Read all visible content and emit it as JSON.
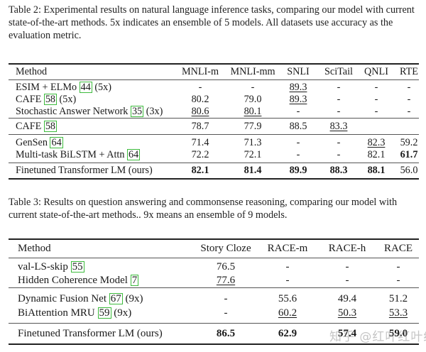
{
  "table2": {
    "caption": "Table 2: Experimental results on natural language inference tasks, comparing our model with current state-of-the-art methods. 5x indicates an ensemble of 5 models. All datasets use accuracy as the evaluation metric.",
    "columns": [
      "Method",
      "MNLI-m",
      "MNLI-mm",
      "SNLI",
      "SciTail",
      "QNLI",
      "RTE"
    ],
    "rows": [
      {
        "name": "ESIM + ELMo",
        "cite": "44",
        "suffix": "(5x)",
        "values": [
          "-",
          "-",
          "89.3",
          "-",
          "-",
          "-"
        ],
        "underline": [
          false,
          false,
          true,
          false,
          false,
          false
        ],
        "bold": [
          false,
          false,
          false,
          false,
          false,
          false
        ]
      },
      {
        "name": "CAFE",
        "cite": "58",
        "suffix": "(5x)",
        "values": [
          "80.2",
          "79.0",
          "89.3",
          "-",
          "-",
          "-"
        ],
        "underline": [
          false,
          false,
          true,
          false,
          false,
          false
        ],
        "bold": [
          false,
          false,
          false,
          false,
          false,
          false
        ]
      },
      {
        "name": "Stochastic Answer Network",
        "cite": "35",
        "suffix": "(3x)",
        "values": [
          "80.6",
          "80.1",
          "-",
          "-",
          "-",
          "-"
        ],
        "underline": [
          true,
          true,
          false,
          false,
          false,
          false
        ],
        "bold": [
          false,
          false,
          false,
          false,
          false,
          false
        ]
      },
      {
        "name": "CAFE",
        "cite": "58",
        "suffix": "",
        "values": [
          "78.7",
          "77.9",
          "88.5",
          "83.3",
          "",
          ""
        ],
        "underline": [
          false,
          false,
          false,
          true,
          false,
          false
        ],
        "bold": [
          false,
          false,
          false,
          false,
          false,
          false
        ]
      },
      {
        "name": "GenSen",
        "cite": "64",
        "suffix": "",
        "values": [
          "71.4",
          "71.3",
          "-",
          "-",
          "82.3",
          "59.2"
        ],
        "underline": [
          false,
          false,
          false,
          false,
          true,
          false
        ],
        "bold": [
          false,
          false,
          false,
          false,
          false,
          false
        ]
      },
      {
        "name": "Multi-task BiLSTM + Attn",
        "cite": "64",
        "suffix": "",
        "values": [
          "72.2",
          "72.1",
          "-",
          "-",
          "82.1",
          "61.7"
        ],
        "underline": [
          false,
          false,
          false,
          false,
          false,
          false
        ],
        "bold": [
          false,
          false,
          false,
          false,
          false,
          true
        ]
      },
      {
        "name": "Finetuned Transformer LM (ours)",
        "cite": "",
        "suffix": "",
        "values": [
          "82.1",
          "81.4",
          "89.9",
          "88.3",
          "88.1",
          "56.0"
        ],
        "underline": [
          false,
          false,
          false,
          false,
          false,
          false
        ],
        "bold": [
          true,
          true,
          true,
          true,
          true,
          false
        ]
      }
    ]
  },
  "table3": {
    "caption": "Table 3: Results on question answering and commonsense reasoning, comparing our model with current state-of-the-art methods.. 9x means an ensemble of 9 models.",
    "columns": [
      "Method",
      "Story Cloze",
      "RACE-m",
      "RACE-h",
      "RACE"
    ],
    "rows": [
      {
        "name": "val-LS-skip",
        "cite": "55",
        "suffix": "",
        "values": [
          "76.5",
          "-",
          "-",
          "-"
        ],
        "underline": [
          false,
          false,
          false,
          false
        ],
        "bold": [
          false,
          false,
          false,
          false
        ]
      },
      {
        "name": "Hidden Coherence Model",
        "cite": "7",
        "suffix": "",
        "values": [
          "77.6",
          "-",
          "-",
          "-"
        ],
        "underline": [
          true,
          false,
          false,
          false
        ],
        "bold": [
          false,
          false,
          false,
          false
        ]
      },
      {
        "name": "Dynamic Fusion Net",
        "cite": "67",
        "suffix": "(9x)",
        "values": [
          "-",
          "55.6",
          "49.4",
          "51.2"
        ],
        "underline": [
          false,
          false,
          false,
          false
        ],
        "bold": [
          false,
          false,
          false,
          false
        ]
      },
      {
        "name": "BiAttention MRU",
        "cite": "59",
        "suffix": "(9x)",
        "values": [
          "-",
          "60.2",
          "50.3",
          "53.3"
        ],
        "underline": [
          false,
          true,
          true,
          true
        ],
        "bold": [
          false,
          false,
          false,
          false
        ]
      },
      {
        "name": "Finetuned Transformer LM (ours)",
        "cite": "",
        "suffix": "",
        "values": [
          "86.5",
          "62.9",
          "57.4",
          "59.0"
        ],
        "underline": [
          false,
          false,
          false,
          false
        ],
        "bold": [
          true,
          true,
          true,
          true
        ]
      }
    ]
  },
  "watermark": "知乎 @红叶红叶红"
}
